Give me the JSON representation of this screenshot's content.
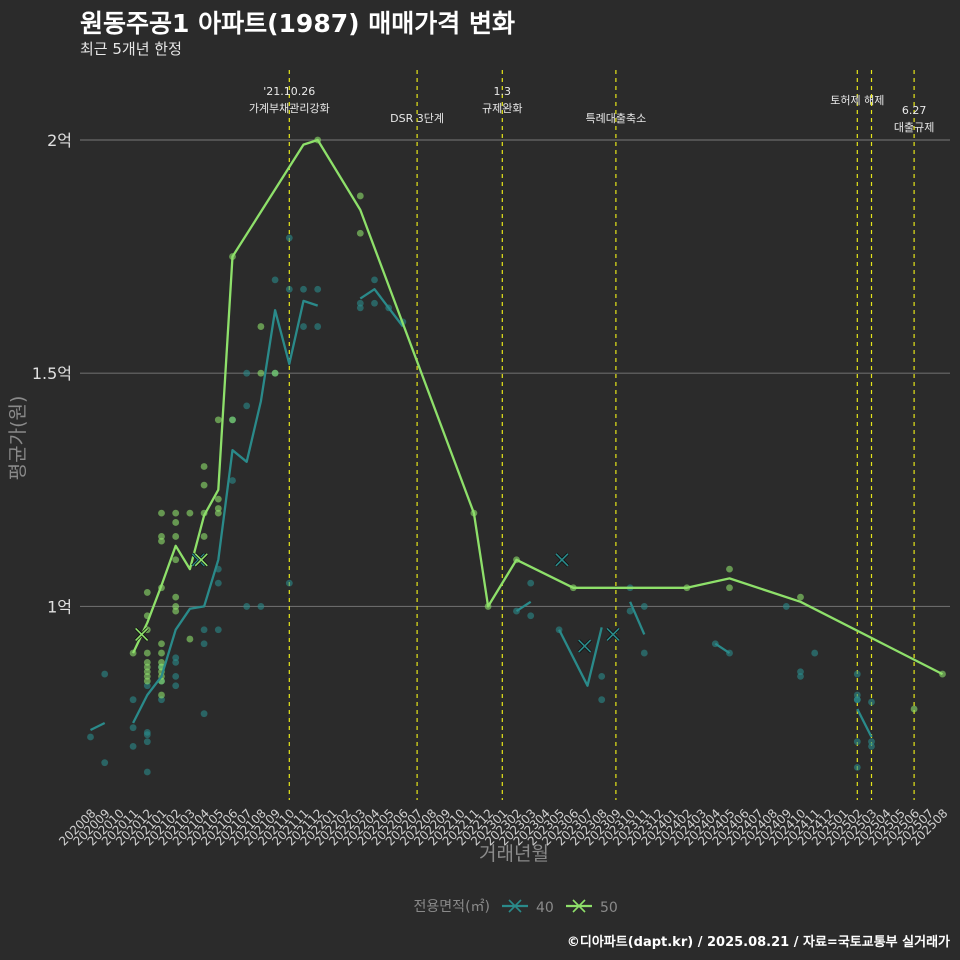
{
  "title": "원동주공1 아파트(1987) 매매가격 변화",
  "subtitle": "최근 5개년 한정",
  "footer": "©디아파트(dapt.kr) / 2025.08.21 / 자료=국토교통부 실거래가",
  "chart_data": {
    "type": "line",
    "xlabel": "거래년월",
    "ylabel": "평균가(원)",
    "ylim": [
      0.585,
      2.15
    ],
    "y_ticks": [
      {
        "v": 1.0,
        "label": "1억"
      },
      {
        "v": 1.5,
        "label": "1.5억"
      },
      {
        "v": 2.0,
        "label": "2억"
      }
    ],
    "x": [
      "202008",
      "202009",
      "202010",
      "202011",
      "202012",
      "202101",
      "202102",
      "202103",
      "202104",
      "202105",
      "202106",
      "202107",
      "202108",
      "202109",
      "202110",
      "202111",
      "202112",
      "202201",
      "202202",
      "202203",
      "202204",
      "202205",
      "202206",
      "202207",
      "202208",
      "202209",
      "202210",
      "202211",
      "202212",
      "202301",
      "202302",
      "202303",
      "202304",
      "202305",
      "202306",
      "202307",
      "202308",
      "202309",
      "202310",
      "202311",
      "202312",
      "202401",
      "202402",
      "202403",
      "202404",
      "202405",
      "202406",
      "202407",
      "202408",
      "202409",
      "202410",
      "202411",
      "202412",
      "202501",
      "202502",
      "202503",
      "202504",
      "202505",
      "202506",
      "202507",
      "202508"
    ],
    "legend_title": "전용면적(㎡)",
    "series": [
      {
        "name": "40",
        "color": "#2a8a8a",
        "segments": [
          [
            [
              0,
              0.735
            ],
            [
              1,
              0.75
            ]
          ],
          [
            [
              3,
              0.75
            ],
            [
              4,
              0.81
            ],
            [
              5,
              0.85
            ],
            [
              6,
              0.95
            ],
            [
              7,
              0.995
            ],
            [
              8,
              1.0
            ],
            [
              9,
              1.1
            ],
            [
              10,
              1.335
            ],
            [
              11,
              1.31
            ],
            [
              12,
              1.44
            ],
            [
              13,
              1.635
            ],
            [
              14,
              1.52
            ],
            [
              15,
              1.655
            ],
            [
              16,
              1.645
            ]
          ],
          [
            [
              19,
              1.66
            ],
            [
              20,
              1.68
            ],
            [
              21,
              1.64
            ],
            [
              22,
              1.6
            ]
          ],
          [
            [
              30,
              0.99
            ],
            [
              31,
              1.01
            ]
          ],
          [
            [
              33,
              0.95
            ],
            [
              35,
              0.83
            ],
            [
              36,
              0.955
            ]
          ],
          [
            [
              38,
              1.01
            ],
            [
              39,
              0.94
            ]
          ],
          [
            [
              44,
              0.92
            ],
            [
              45,
              0.9
            ]
          ],
          [
            [
              54,
              0.78
            ],
            [
              55,
              0.72
            ]
          ]
        ],
        "points": [
          [
            0,
            0.72
          ],
          [
            1,
            0.855
          ],
          [
            1,
            0.665
          ],
          [
            3,
            0.8
          ],
          [
            3,
            0.74
          ],
          [
            3,
            0.7
          ],
          [
            4,
            0.83
          ],
          [
            4,
            0.725
          ],
          [
            4,
            0.73
          ],
          [
            4,
            0.71
          ],
          [
            4,
            0.645
          ],
          [
            5,
            0.8
          ],
          [
            5,
            0.84
          ],
          [
            5,
            0.87
          ],
          [
            6,
            0.88
          ],
          [
            6,
            0.85
          ],
          [
            6,
            0.83
          ],
          [
            6,
            0.89
          ],
          [
            8,
            0.77
          ],
          [
            8,
            0.92
          ],
          [
            8,
            0.95
          ],
          [
            9,
            0.95
          ],
          [
            9,
            1.05
          ],
          [
            9,
            1.08
          ],
          [
            10,
            1.27
          ],
          [
            10,
            1.4
          ],
          [
            11,
            1.43
          ],
          [
            11,
            1.5
          ],
          [
            11,
            1.0
          ],
          [
            12,
            1.0
          ],
          [
            13,
            1.7
          ],
          [
            13,
            1.5
          ],
          [
            14,
            1.79
          ],
          [
            14,
            1.68
          ],
          [
            14,
            1.05
          ],
          [
            15,
            1.68
          ],
          [
            15,
            1.6
          ],
          [
            16,
            1.68
          ],
          [
            16,
            1.6
          ],
          [
            19,
            1.65
          ],
          [
            19,
            1.64
          ],
          [
            20,
            1.7
          ],
          [
            20,
            1.65
          ],
          [
            21,
            1.64
          ],
          [
            22,
            1.61
          ],
          [
            30,
            0.99
          ],
          [
            31,
            1.05
          ],
          [
            31,
            0.98
          ],
          [
            33,
            0.95
          ],
          [
            36,
            0.85
          ],
          [
            36,
            0.8
          ],
          [
            38,
            0.99
          ],
          [
            38,
            1.04
          ],
          [
            39,
            0.9
          ],
          [
            39,
            1.0
          ],
          [
            44,
            0.92
          ],
          [
            45,
            0.9
          ],
          [
            49,
            1.0
          ],
          [
            50,
            0.86
          ],
          [
            50,
            0.85
          ],
          [
            51,
            0.9
          ],
          [
            54,
            0.855
          ],
          [
            54,
            0.8
          ],
          [
            54,
            0.81
          ],
          [
            54,
            0.8
          ],
          [
            54,
            0.71
          ],
          [
            54,
            0.655
          ],
          [
            55,
            0.795
          ],
          [
            55,
            0.71
          ],
          [
            55,
            0.7
          ]
        ]
      },
      {
        "name": "50",
        "color": "#8ee06a",
        "segments": [
          [
            [
              3,
              0.9
            ],
            [
              4,
              0.965
            ],
            [
              5,
              1.045
            ],
            [
              6,
              1.13
            ],
            [
              7,
              1.08
            ],
            [
              8,
              1.195
            ],
            [
              9,
              1.25
            ],
            [
              10,
              1.75
            ],
            [
              15,
              1.99
            ],
            [
              16,
              2.0
            ],
            [
              19,
              1.85
            ],
            [
              27,
              1.2
            ],
            [
              28,
              1.0
            ],
            [
              30,
              1.1
            ],
            [
              34,
              1.04
            ],
            [
              42,
              1.04
            ],
            [
              45,
              1.06
            ],
            [
              50,
              1.01
            ],
            [
              60,
              0.855
            ]
          ]
        ],
        "points": [
          [
            3,
            0.9
          ],
          [
            4,
            0.95
          ],
          [
            4,
            0.98
          ],
          [
            4,
            1.03
          ],
          [
            4,
            0.9
          ],
          [
            4,
            0.88
          ],
          [
            4,
            0.87
          ],
          [
            4,
            0.86
          ],
          [
            4,
            0.85
          ],
          [
            4,
            0.84
          ],
          [
            5,
            1.2
          ],
          [
            5,
            1.15
          ],
          [
            5,
            1.14
          ],
          [
            5,
            1.04
          ],
          [
            5,
            0.92
          ],
          [
            5,
            0.9
          ],
          [
            5,
            0.88
          ],
          [
            5,
            0.87
          ],
          [
            5,
            0.86
          ],
          [
            5,
            0.85
          ],
          [
            5,
            0.84
          ],
          [
            5,
            0.81
          ],
          [
            6,
            1.2
          ],
          [
            6,
            1.18
          ],
          [
            6,
            1.15
          ],
          [
            6,
            1.1
          ],
          [
            6,
            1.02
          ],
          [
            6,
            1.0
          ],
          [
            6,
            0.99
          ],
          [
            7,
            1.2
          ],
          [
            7,
            0.93
          ],
          [
            8,
            1.3
          ],
          [
            8,
            1.26
          ],
          [
            8,
            1.2
          ],
          [
            8,
            1.15
          ],
          [
            9,
            1.23
          ],
          [
            9,
            1.2
          ],
          [
            9,
            1.21
          ],
          [
            9,
            1.4
          ],
          [
            10,
            1.75
          ],
          [
            10,
            1.4
          ],
          [
            12,
            1.6
          ],
          [
            12,
            1.5
          ],
          [
            13,
            1.5
          ],
          [
            16,
            2.0
          ],
          [
            19,
            1.88
          ],
          [
            19,
            1.8
          ],
          [
            27,
            1.2
          ],
          [
            28,
            1.0
          ],
          [
            30,
            1.1
          ],
          [
            34,
            1.04
          ],
          [
            42,
            1.04
          ],
          [
            45,
            1.08
          ],
          [
            45,
            1.04
          ],
          [
            50,
            1.02
          ],
          [
            60,
            0.855
          ],
          [
            58,
            0.78
          ]
        ]
      }
    ],
    "x_markers": [
      [
        7.6,
        40,
        1.1
      ],
      [
        33.2,
        40,
        1.1
      ],
      [
        34.8,
        40,
        0.915
      ],
      [
        36.8,
        40,
        0.94
      ],
      [
        3.6,
        50,
        0.94
      ],
      [
        7.8,
        50,
        1.1
      ]
    ],
    "vlines": [
      {
        "x": 14.0,
        "label": [
          "'21.10.26",
          "가계부채관리강화"
        ]
      },
      {
        "x": 23.0,
        "label": [
          "DSR 3단계"
        ]
      },
      {
        "x": 29.0,
        "label": [
          "1.3",
          "규제완화"
        ]
      },
      {
        "x": 37.0,
        "label": [
          "특례대출축소"
        ]
      },
      {
        "x": 54.0,
        "label": [
          "토허제 해제"
        ]
      },
      {
        "x": 55.0,
        "label": []
      },
      {
        "x": 58.0,
        "label": [
          "6.27",
          "대출규제"
        ]
      }
    ]
  }
}
